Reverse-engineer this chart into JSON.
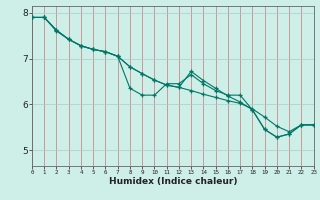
{
  "xlabel": "Humidex (Indice chaleur)",
  "background_color": "#ceeee8",
  "line_color": "#007766",
  "xlim": [
    0,
    23
  ],
  "ylim": [
    4.65,
    8.15
  ],
  "yticks": [
    5,
    6,
    7,
    8
  ],
  "xticks": [
    0,
    1,
    2,
    3,
    4,
    5,
    6,
    7,
    8,
    9,
    10,
    11,
    12,
    13,
    14,
    15,
    16,
    17,
    18,
    19,
    20,
    21,
    22,
    23
  ],
  "series": [
    {
      "x": [
        0,
        1,
        2,
        3,
        4,
        5,
        6,
        7,
        8,
        9,
        10,
        11,
        12,
        13,
        14,
        15,
        16,
        17,
        18,
        19,
        20,
        21,
        22,
        23
      ],
      "y": [
        7.9,
        7.9,
        7.6,
        7.42,
        7.28,
        7.2,
        7.15,
        7.05,
        6.35,
        6.2,
        6.2,
        6.45,
        6.45,
        6.65,
        6.45,
        6.3,
        6.2,
        6.2,
        5.88,
        5.45,
        5.28,
        5.35,
        5.55,
        5.55
      ]
    },
    {
      "x": [
        0,
        1,
        2,
        3,
        4,
        5,
        6,
        7,
        8,
        9,
        10,
        11,
        12,
        13,
        14,
        15,
        16,
        17,
        18,
        19,
        20,
        21,
        22,
        23
      ],
      "y": [
        7.9,
        7.9,
        7.62,
        7.42,
        7.28,
        7.2,
        7.15,
        7.05,
        6.82,
        6.67,
        6.53,
        6.42,
        6.37,
        6.3,
        6.22,
        6.15,
        6.08,
        6.02,
        5.9,
        5.72,
        5.52,
        5.4,
        5.55,
        5.55
      ]
    },
    {
      "x": [
        0,
        1,
        2,
        3,
        4,
        5,
        6,
        7,
        8,
        9,
        10,
        11,
        12,
        13,
        14,
        15,
        16,
        17,
        18,
        19,
        20,
        21,
        22,
        23
      ],
      "y": [
        7.9,
        7.9,
        7.62,
        7.42,
        7.28,
        7.2,
        7.15,
        7.05,
        6.82,
        6.67,
        6.53,
        6.42,
        6.37,
        6.72,
        6.52,
        6.35,
        6.18,
        6.05,
        5.88,
        5.45,
        5.28,
        5.35,
        5.55,
        5.55
      ]
    }
  ]
}
